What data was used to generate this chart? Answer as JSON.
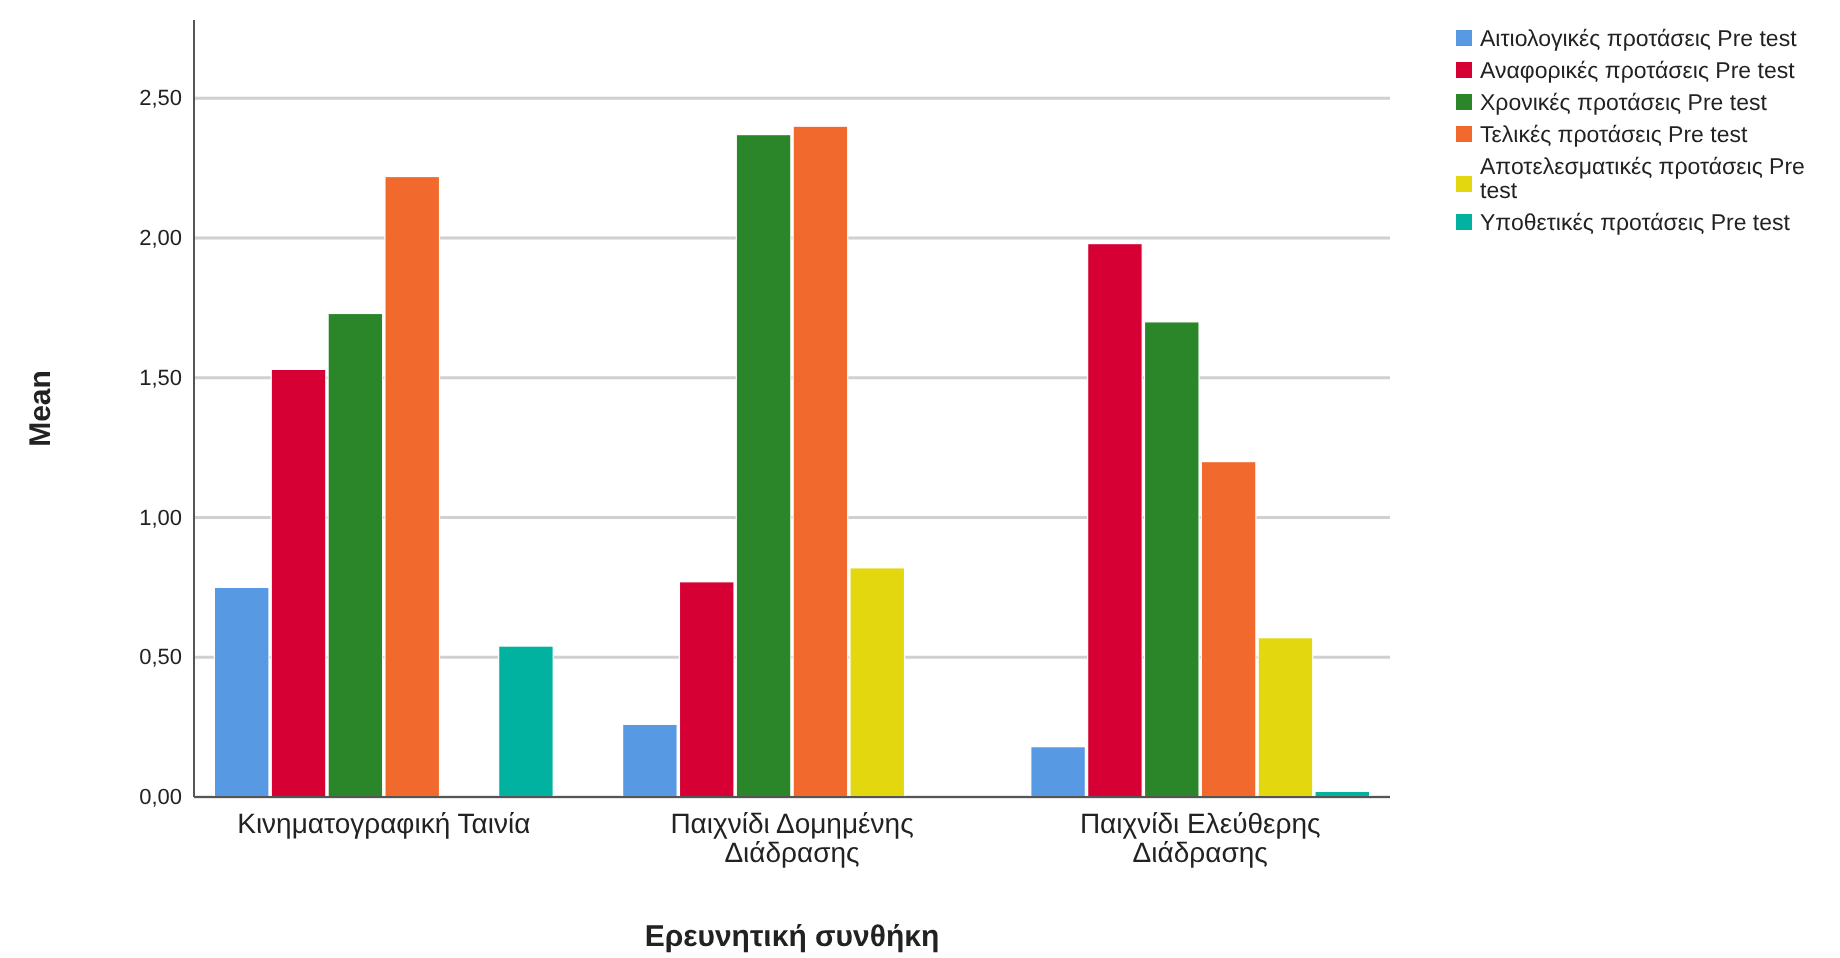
{
  "chart_data": {
    "type": "bar",
    "xlabel": "Ερευνητική συνθήκη",
    "ylabel": "Mean",
    "categories": [
      "Κινηματογραφική Ταινία",
      "Παιχνίδι Δομημένης Διάδρασης",
      "Παιχνίδι Ελεύθερης Διάδρασης"
    ],
    "series": [
      {
        "name": "Αιτιολογικές προτάσεις Pre test",
        "color": "#5899e4",
        "values": [
          0.75,
          0.26,
          0.18
        ]
      },
      {
        "name": "Αναφορικές προτάσεις Pre test",
        "color": "#d60034",
        "values": [
          1.53,
          0.77,
          1.98
        ]
      },
      {
        "name": "Χρονικές προτάσεις Pre test",
        "color": "#2a8629",
        "values": [
          1.73,
          2.37,
          1.7
        ]
      },
      {
        "name": "Τελικές προτάσεις Pre test",
        "color": "#f2692d",
        "values": [
          2.22,
          2.4,
          1.2
        ]
      },
      {
        "name": "Αποτελεσματικές προτάσεις Pre test",
        "color": "#e3d70f",
        "values": [
          null,
          0.82,
          0.57
        ]
      },
      {
        "name": "Υποθετικές προτάσεις Pre test",
        "color": "#02b2a0",
        "values": [
          0.54,
          null,
          0.02
        ]
      }
    ],
    "ylim": [
      0,
      2.78
    ],
    "yticks": [
      {
        "value": 0,
        "label": "0,00"
      },
      {
        "value": 0.5,
        "label": "0,50"
      },
      {
        "value": 1,
        "label": "1,00"
      },
      {
        "value": 1.5,
        "label": "1,50"
      },
      {
        "value": 2,
        "label": "2,00"
      },
      {
        "value": 2.5,
        "label": "2,50"
      }
    ],
    "grid": "y",
    "legend": "right"
  }
}
